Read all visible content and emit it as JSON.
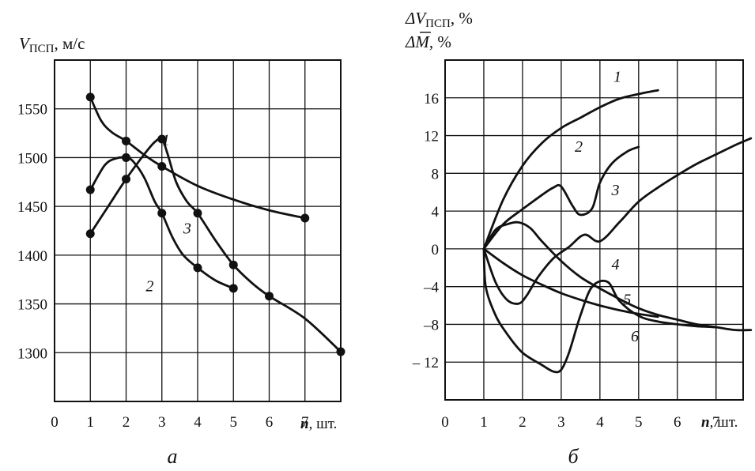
{
  "chart_data": [
    {
      "id": "a",
      "type": "line",
      "panel_label": "а",
      "ylabel_symbol": "V",
      "ylabel_sub": "ПСП",
      "ylabel_unit": ", м/с",
      "xlabel_symbol": "n",
      "xlabel_unit": ", шт.",
      "xlim": [
        0,
        8
      ],
      "ylim": [
        1250,
        1600
      ],
      "x_ticks": [
        0,
        1,
        2,
        3,
        4,
        5,
        6,
        7
      ],
      "y_ticks": [
        1300,
        1350,
        1400,
        1450,
        1500,
        1550
      ],
      "x_grid": [
        1,
        2,
        3,
        4,
        5,
        6,
        7
      ],
      "y_grid": [
        1300,
        1350,
        1400,
        1450,
        1500,
        1550
      ],
      "series": [
        {
          "name": "1",
          "label": "1",
          "label_at": [
            3.0,
            1513
          ],
          "x": [
            1,
            2,
            3,
            4,
            5
          ],
          "y": [
            1422,
            1478,
            1519,
            1443,
            1390
          ],
          "smooth": [
            [
              1,
              1422
            ],
            [
              1.5,
              1450
            ],
            [
              2,
              1478
            ],
            [
              2.5,
              1503
            ],
            [
              2.8,
              1516
            ],
            [
              3,
              1519
            ],
            [
              3.15,
              1505
            ],
            [
              3.4,
              1475
            ],
            [
              3.7,
              1455
            ],
            [
              4,
              1443
            ],
            [
              4.5,
              1415
            ],
            [
              5,
              1390
            ],
            [
              5.5,
              1372
            ],
            [
              6,
              1358
            ],
            [
              7,
              1335
            ],
            [
              8,
              1301
            ]
          ]
        },
        {
          "name": "2",
          "label": "2",
          "label_at": [
            2.55,
            1363
          ],
          "x": [
            1,
            2,
            3,
            4,
            5
          ],
          "y": [
            1467,
            1500,
            1443,
            1387,
            1366
          ],
          "smooth": [
            [
              1,
              1467
            ],
            [
              1.4,
              1492
            ],
            [
              1.7,
              1499
            ],
            [
              2,
              1500
            ],
            [
              2.2,
              1496
            ],
            [
              2.5,
              1480
            ],
            [
              2.8,
              1455
            ],
            [
              3,
              1443
            ],
            [
              3.3,
              1418
            ],
            [
              3.6,
              1400
            ],
            [
              4,
              1387
            ],
            [
              4.5,
              1374
            ],
            [
              5,
              1366
            ]
          ]
        },
        {
          "name": "3",
          "label": "3",
          "label_at": [
            3.6,
            1422
          ],
          "x": [
            1,
            2,
            3,
            7
          ],
          "y": [
            1562,
            1517,
            1491,
            1438
          ],
          "smooth": [
            [
              1,
              1562
            ],
            [
              1.3,
              1538
            ],
            [
              1.6,
              1526
            ],
            [
              2,
              1517
            ],
            [
              2.5,
              1503
            ],
            [
              3,
              1491
            ],
            [
              4,
              1471
            ],
            [
              5,
              1457
            ],
            [
              6,
              1446
            ],
            [
              7,
              1438
            ]
          ]
        }
      ],
      "markers": [
        [
          1,
          1562
        ],
        [
          1,
          1467
        ],
        [
          1,
          1422
        ],
        [
          2,
          1517
        ],
        [
          2,
          1500
        ],
        [
          2,
          1478
        ],
        [
          3,
          1519
        ],
        [
          3,
          1491
        ],
        [
          3,
          1443
        ],
        [
          4,
          1443
        ],
        [
          4,
          1387
        ],
        [
          5,
          1390
        ],
        [
          5,
          1366
        ],
        [
          6,
          1358
        ],
        [
          7,
          1438
        ],
        [
          8,
          1301
        ]
      ]
    },
    {
      "id": "b",
      "type": "line",
      "panel_label": "б",
      "ylabel_line1_symbol": "ΔV",
      "ylabel_line1_sub": "ПСП",
      "ylabel_line1_unit": ", %",
      "ylabel_line2_symbol": "ΔM",
      "ylabel_line2_unit": ", %",
      "xlabel_symbol": "n",
      "xlabel_unit": ", шт.",
      "xlim": [
        0,
        7.7
      ],
      "ylim": [
        -16,
        20
      ],
      "x_ticks": [
        0,
        1,
        2,
        3,
        4,
        5,
        6,
        7
      ],
      "y_ticks": [
        -12,
        -8,
        -4,
        0,
        4,
        8,
        12,
        16
      ],
      "y_tick_labels": [
        "– 12",
        "–8",
        "–4",
        "0",
        "4",
        "8",
        "12",
        "16"
      ],
      "x_grid": [
        1,
        2,
        3,
        4,
        5,
        6,
        7
      ],
      "y_grid": [
        -12,
        -8,
        -4,
        0,
        4,
        8,
        12,
        16
      ],
      "series": [
        {
          "name": "1",
          "label": "1",
          "label_at": [
            4.35,
            17.7
          ],
          "points": [
            [
              1,
              0
            ],
            [
              1.5,
              5.2
            ],
            [
              2,
              8.8
            ],
            [
              2.5,
              11.2
            ],
            [
              3,
              12.8
            ],
            [
              3.5,
              13.9
            ],
            [
              4,
              15
            ],
            [
              4.5,
              15.9
            ],
            [
              5,
              16.4
            ],
            [
              5.5,
              16.8
            ]
          ]
        },
        {
          "name": "2",
          "label": "2",
          "label_at": [
            3.35,
            10.3
          ],
          "points": [
            [
              1,
              0
            ],
            [
              1.5,
              2.6
            ],
            [
              2,
              4.2
            ],
            [
              2.5,
              5.7
            ],
            [
              2.8,
              6.5
            ],
            [
              3,
              6.6
            ],
            [
              3.3,
              4.5
            ],
            [
              3.5,
              3.6
            ],
            [
              3.8,
              4.3
            ],
            [
              4,
              7
            ],
            [
              4.3,
              9
            ],
            [
              4.7,
              10.3
            ],
            [
              5,
              10.8
            ]
          ]
        },
        {
          "name": "3",
          "label": "3",
          "label_at": [
            4.3,
            5.7
          ],
          "points": [
            [
              1,
              0
            ],
            [
              1.3,
              -3.5
            ],
            [
              1.6,
              -5.4
            ],
            [
              1.9,
              -5.8
            ],
            [
              2.1,
              -5
            ],
            [
              2.4,
              -3
            ],
            [
              2.8,
              -1
            ],
            [
              3.2,
              0.2
            ],
            [
              3.6,
              1.5
            ],
            [
              4,
              0.8
            ],
            [
              4.5,
              2.8
            ],
            [
              5,
              5
            ],
            [
              5.5,
              6.5
            ],
            [
              6,
              7.8
            ],
            [
              6.5,
              9
            ],
            [
              7,
              10
            ],
            [
              7.5,
              11
            ],
            [
              7.9,
              11.7
            ]
          ]
        },
        {
          "name": "4",
          "label": "4",
          "label_at": [
            4.3,
            -2.2
          ],
          "points": [
            [
              1,
              0
            ],
            [
              1.3,
              2
            ],
            [
              1.6,
              2.6
            ],
            [
              1.9,
              2.8
            ],
            [
              2.2,
              2.2
            ],
            [
              2.5,
              0.8
            ],
            [
              3,
              -1.3
            ],
            [
              3.5,
              -3
            ],
            [
              4,
              -4.2
            ],
            [
              4.5,
              -5.3
            ],
            [
              5,
              -6.3
            ],
            [
              5.5,
              -7
            ],
            [
              6,
              -7.5
            ],
            [
              6.5,
              -8
            ],
            [
              7,
              -8.3
            ],
            [
              7.5,
              -8.6
            ],
            [
              7.9,
              -8.6
            ]
          ]
        },
        {
          "name": "5",
          "label": "5",
          "label_at": [
            4.6,
            -5.9
          ],
          "points": [
            [
              1,
              0
            ],
            [
              1.5,
              -1.5
            ],
            [
              2,
              -2.8
            ],
            [
              2.5,
              -3.8
            ],
            [
              3,
              -4.7
            ],
            [
              3.5,
              -5.4
            ],
            [
              4,
              -6
            ],
            [
              4.5,
              -6.5
            ],
            [
              5,
              -6.9
            ],
            [
              5.5,
              -7.2
            ]
          ]
        },
        {
          "name": "6",
          "label": "6",
          "label_at": [
            4.8,
            -9.8
          ],
          "points": [
            [
              1,
              0
            ],
            [
              1.05,
              -4
            ],
            [
              1.3,
              -7
            ],
            [
              1.6,
              -9
            ],
            [
              2,
              -11
            ],
            [
              2.5,
              -12.3
            ],
            [
              2.8,
              -13
            ],
            [
              3,
              -12.8
            ],
            [
              3.2,
              -11
            ],
            [
              3.5,
              -7
            ],
            [
              3.8,
              -4
            ],
            [
              4.2,
              -3.5
            ],
            [
              4.5,
              -5.5
            ],
            [
              5,
              -7.1
            ],
            [
              5.5,
              -7.7
            ],
            [
              6,
              -8
            ],
            [
              6.5,
              -8.2
            ],
            [
              7,
              -8.3
            ]
          ]
        }
      ]
    }
  ]
}
